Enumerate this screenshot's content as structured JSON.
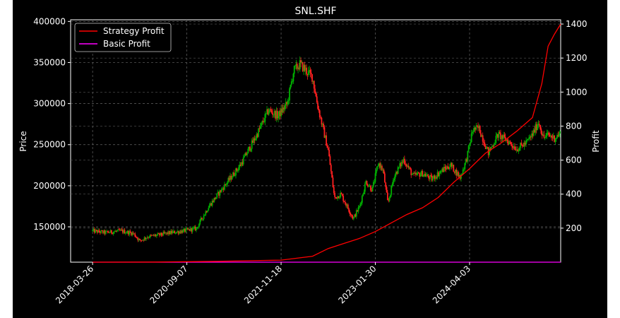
{
  "chart_data": {
    "type": "candlestick+line",
    "title": "SNL.SHF",
    "xlabel": "",
    "ylabel_left": "Price",
    "ylabel_right": "Profit",
    "legend": {
      "placement": "top-left",
      "entries": [
        {
          "name": "Strategy Profit",
          "color": "#ff0000"
        },
        {
          "name": "Basic Profit",
          "color": "#ff00ff"
        }
      ]
    },
    "grid": true,
    "x_tick_labels": [
      "2018-03-26",
      "2020-09-07",
      "2021-11-18",
      "2023-01-30",
      "2024-04-03"
    ],
    "x_tick_index": [
      0,
      300,
      600,
      900,
      1200
    ],
    "x_index_range": [
      -70,
      1490
    ],
    "y_left": {
      "ylim": [
        107000,
        402000
      ],
      "ticks": [
        150000,
        200000,
        250000,
        300000,
        350000,
        400000
      ],
      "tick_labels": [
        "150000",
        "200000",
        "250000",
        "300000",
        "350000",
        "400000"
      ]
    },
    "y_right": {
      "ylim": [
        0,
        1425
      ],
      "ticks": [
        200,
        400,
        600,
        800,
        1000,
        1200,
        1400
      ],
      "tick_labels": [
        "200",
        "400",
        "600",
        "800",
        "1000",
        "1200",
        "1400"
      ]
    },
    "price_path": {
      "index": [
        0,
        40,
        90,
        130,
        150,
        175,
        210,
        250,
        290,
        330,
        370,
        420,
        470,
        520,
        560,
        590,
        620,
        640,
        660,
        680,
        700,
        715,
        730,
        750,
        770,
        790,
        810,
        830,
        850,
        870,
        890,
        910,
        925,
        940,
        960,
        990,
        1020,
        1050,
        1080,
        1110,
        1140,
        1170,
        1190,
        1200,
        1210,
        1230,
        1260,
        1290,
        1320,
        1350,
        1380,
        1400,
        1420,
        1435,
        1450,
        1470,
        1490
      ],
      "close": [
        145000,
        143000,
        145000,
        142000,
        133000,
        138000,
        140000,
        143000,
        145000,
        148000,
        175000,
        200000,
        225000,
        260000,
        292000,
        285000,
        300000,
        340000,
        348000,
        340000,
        332000,
        300000,
        275000,
        243000,
        185000,
        190000,
        175000,
        160000,
        175000,
        205000,
        195000,
        228000,
        218000,
        178000,
        212000,
        232000,
        212000,
        215000,
        208000,
        218000,
        225000,
        210000,
        232000,
        250000,
        268000,
        270000,
        240000,
        262000,
        255000,
        245000,
        252000,
        262000,
        278000,
        258000,
        262000,
        258000,
        264000
      ]
    },
    "strategy_profit": {
      "index": [
        0,
        200,
        400,
        600,
        700,
        750,
        800,
        850,
        900,
        950,
        1000,
        1050,
        1100,
        1150,
        1200,
        1250,
        1300,
        1350,
        1400,
        1430,
        1450,
        1470,
        1490
      ],
      "values": [
        0,
        1,
        5,
        12,
        35,
        80,
        110,
        140,
        180,
        230,
        280,
        320,
        380,
        470,
        550,
        640,
        700,
        770,
        850,
        1050,
        1270,
        1340,
        1400
      ]
    },
    "basic_profit": {
      "index": [
        0,
        1490
      ],
      "values": [
        0,
        0
      ]
    }
  }
}
